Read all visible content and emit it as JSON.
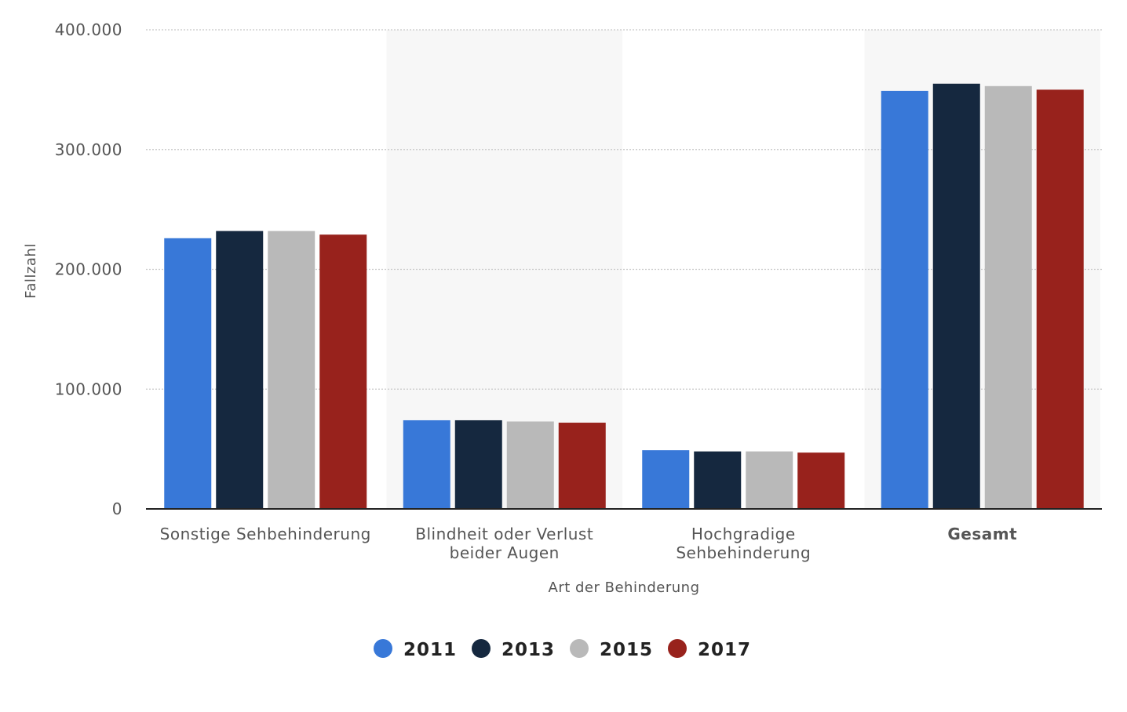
{
  "chart_data": {
    "type": "bar",
    "title": "",
    "xlabel": "Art der Behinderung",
    "ylabel": "Fallzahl",
    "ylim": [
      0,
      400000
    ],
    "yticks": [
      0,
      100000,
      200000,
      300000,
      400000
    ],
    "ytick_labels": [
      "0",
      "100.000",
      "200.000",
      "300.000",
      "400.000"
    ],
    "grid": true,
    "legend_position": "bottom-center",
    "categories": [
      [
        "Sonstige Sehbehinderung"
      ],
      [
        "Blindheit oder Verlust",
        "beider Augen"
      ],
      [
        "Hochgradige",
        "Sehbehinderung"
      ],
      [
        "Gesamt"
      ]
    ],
    "category_bold": [
      false,
      false,
      false,
      true
    ],
    "category_shaded": [
      false,
      true,
      false,
      true
    ],
    "series": [
      {
        "name": "2011",
        "color": "#3878d8",
        "values": [
          226000,
          74000,
          49000,
          349000
        ]
      },
      {
        "name": "2013",
        "color": "#15283f",
        "values": [
          232000,
          74000,
          48000,
          355000
        ]
      },
      {
        "name": "2015",
        "color": "#b9b9b9",
        "values": [
          232000,
          73000,
          48000,
          353000
        ]
      },
      {
        "name": "2017",
        "color": "#98221c",
        "values": [
          229000,
          72000,
          47000,
          350000
        ]
      }
    ]
  }
}
